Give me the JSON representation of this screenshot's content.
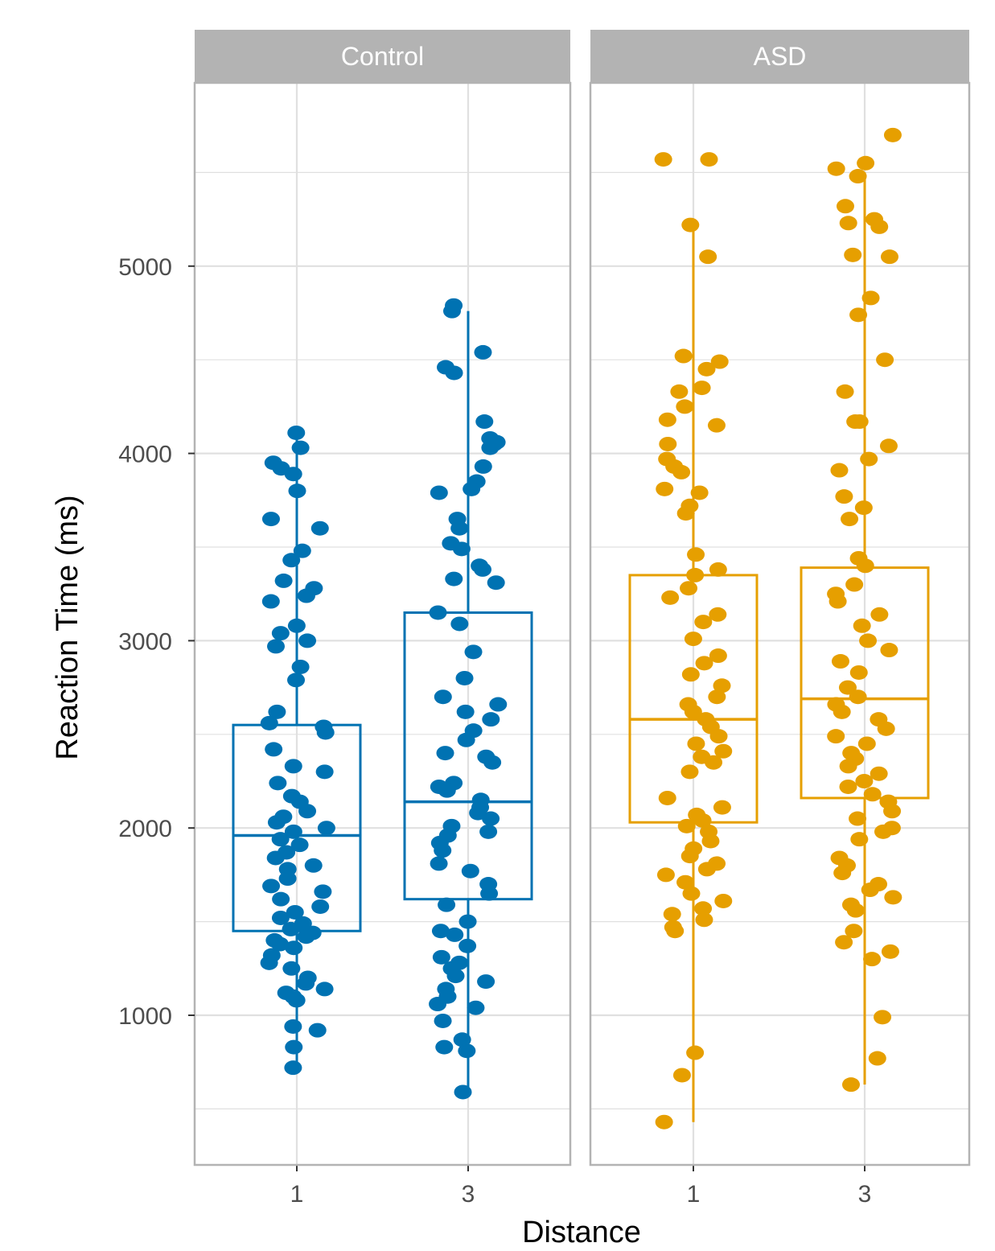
{
  "chart_data": {
    "type": "boxplot",
    "facets": [
      {
        "name": "Control",
        "color": "#0072B2",
        "groups": [
          {
            "x": "1",
            "box": {
              "whisker_low": 720,
              "q1": 1450,
              "median": 1960,
              "q3": 2550,
              "whisker_high": 4110
            },
            "points": [
              4110,
              4030,
              3950,
              3920,
              3890,
              3800,
              3650,
              3600,
              3480,
              3430,
              3320,
              3280,
              3240,
              3210,
              3080,
              3040,
              3000,
              2970,
              2860,
              2790,
              2620,
              2560,
              2540,
              2510,
              2420,
              2330,
              2300,
              2240,
              2170,
              2140,
              2090,
              2060,
              2030,
              2000,
              1980,
              1940,
              1910,
              1870,
              1840,
              1800,
              1780,
              1730,
              1690,
              1660,
              1620,
              1580,
              1550,
              1520,
              1490,
              1460,
              1440,
              1420,
              1400,
              1380,
              1360,
              1320,
              1280,
              1250,
              1200,
              1170,
              1140,
              1120,
              1100,
              1080,
              940,
              920,
              830,
              720
            ]
          },
          {
            "x": "3",
            "box": {
              "whisker_low": 600,
              "q1": 1620,
              "median": 2140,
              "q3": 3150,
              "whisker_high": 4760
            },
            "points": [
              4790,
              4760,
              4540,
              4460,
              4430,
              4170,
              4080,
              4060,
              4050,
              4030,
              3930,
              3850,
              3810,
              3790,
              3650,
              3600,
              3520,
              3490,
              3400,
              3380,
              3330,
              3310,
              3150,
              3090,
              2940,
              2800,
              2700,
              2660,
              2620,
              2580,
              2520,
              2470,
              2400,
              2380,
              2350,
              2240,
              2220,
              2200,
              2150,
              2110,
              2080,
              2050,
              2010,
              1980,
              1960,
              1920,
              1880,
              1810,
              1770,
              1700,
              1650,
              1590,
              1500,
              1450,
              1430,
              1370,
              1310,
              1280,
              1250,
              1210,
              1180,
              1140,
              1100,
              1060,
              1040,
              970,
              870,
              830,
              810,
              590
            ]
          }
        ]
      },
      {
        "name": "ASD",
        "color": "#E69F00",
        "groups": [
          {
            "x": "1",
            "box": {
              "whisker_low": 430,
              "q1": 2030,
              "median": 2580,
              "q3": 3350,
              "whisker_high": 5230
            },
            "points": [
              5570,
              5570,
              5220,
              5050,
              4520,
              4490,
              4450,
              4350,
              4330,
              4250,
              4180,
              4150,
              4050,
              3970,
              3930,
              3900,
              3810,
              3790,
              3720,
              3680,
              3460,
              3380,
              3350,
              3280,
              3230,
              3140,
              3100,
              3010,
              2920,
              2880,
              2820,
              2760,
              2700,
              2660,
              2620,
              2580,
              2540,
              2490,
              2450,
              2410,
              2380,
              2350,
              2300,
              2160,
              2110,
              2070,
              2040,
              2010,
              1980,
              1930,
              1890,
              1850,
              1810,
              1780,
              1750,
              1710,
              1650,
              1610,
              1570,
              1540,
              1510,
              1470,
              1450,
              800,
              680,
              430
            ]
          },
          {
            "x": "3",
            "box": {
              "whisker_low": 630,
              "q1": 2160,
              "median": 2690,
              "q3": 3390,
              "whisker_high": 5500
            },
            "points": [
              5700,
              5550,
              5520,
              5480,
              5320,
              5250,
              5230,
              5210,
              5060,
              5050,
              4830,
              4740,
              4500,
              4330,
              4170,
              4170,
              4040,
              3970,
              3910,
              3770,
              3710,
              3650,
              3440,
              3400,
              3300,
              3250,
              3210,
              3140,
              3080,
              3000,
              2950,
              2890,
              2830,
              2750,
              2700,
              2660,
              2620,
              2580,
              2530,
              2490,
              2450,
              2400,
              2370,
              2330,
              2290,
              2250,
              2220,
              2180,
              2140,
              2090,
              2050,
              2000,
              1980,
              1940,
              1840,
              1800,
              1760,
              1700,
              1670,
              1630,
              1590,
              1560,
              1450,
              1390,
              1340,
              1300,
              990,
              770,
              630
            ]
          }
        ]
      }
    ],
    "xlabel": "Distance",
    "ylabel": "Reaction Time (ms)",
    "y_ticks": [
      1000,
      2000,
      3000,
      4000,
      5000
    ],
    "ylim": [
      250,
      5950
    ],
    "theme": {
      "strip_fill": "#b3b3b3",
      "grid_color": "#e0e0e0",
      "panel_border": "#b3b3b3"
    }
  }
}
